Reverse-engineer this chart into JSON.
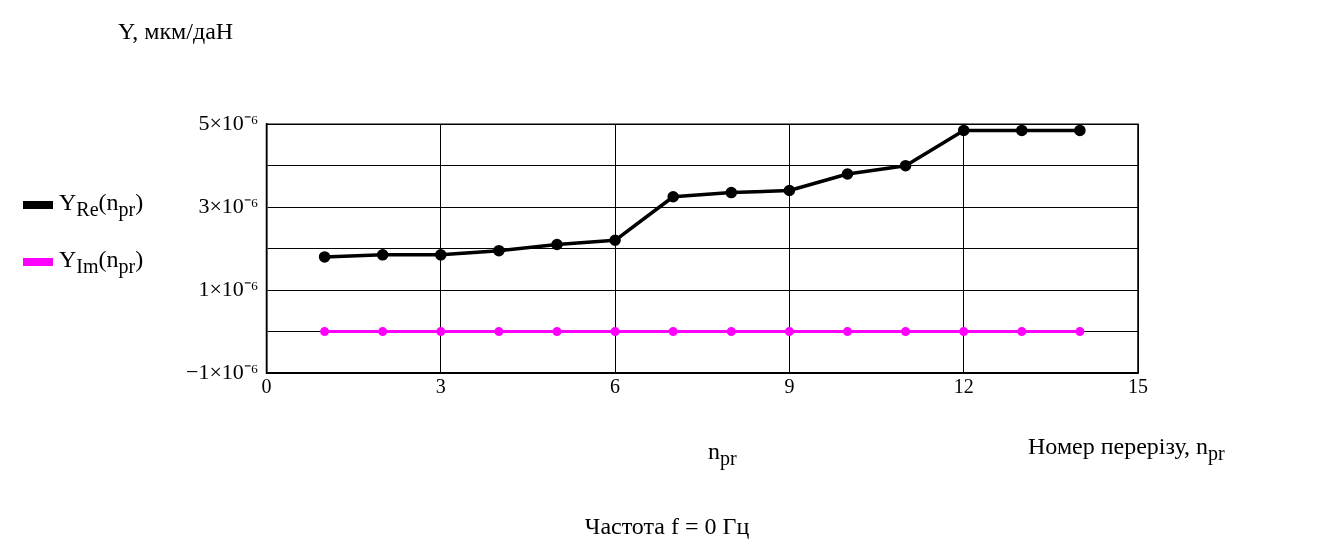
{
  "chart_data": {
    "type": "line",
    "ylabel": "Y, мкм/даН",
    "xlabel": "Номер перерізу, n$_{pr}$",
    "annotations": [
      "n$_{pr}$",
      "Частота f = 0 Гц"
    ],
    "x": [
      1,
      2,
      3,
      4,
      5,
      6,
      7,
      8,
      9,
      10,
      11,
      12,
      13,
      14
    ],
    "series": [
      {
        "name": "Y$_{Re}$(n$_{pr}$)",
        "color": "#000000",
        "values": [
          1.8e-06,
          1.85e-06,
          1.85e-06,
          1.95e-06,
          2.1e-06,
          2.2e-06,
          3.25e-06,
          3.35e-06,
          3.4e-06,
          3.8e-06,
          4e-06,
          4.85e-06,
          4.85e-06,
          4.85e-06
        ]
      },
      {
        "name": "Y$_{Im}$(n$_{pr}$)",
        "color": "#ff00ff",
        "values": [
          0,
          0,
          0,
          0,
          0,
          0,
          0,
          0,
          0,
          0,
          0,
          0,
          0,
          0
        ]
      }
    ],
    "xlim": [
      0,
      15
    ],
    "xticks": [
      0,
      3,
      6,
      9,
      12,
      15
    ],
    "ylim": [
      -1e-06,
      5e-06
    ],
    "yticks": [
      {
        "value": -1e-06,
        "label": "−1×10⁻⁶"
      },
      {
        "value": 0,
        "label": null
      },
      {
        "value": 1e-06,
        "label": "1×10⁻⁶"
      },
      {
        "value": 2e-06,
        "label": null
      },
      {
        "value": 3e-06,
        "label": "3×10⁻⁶"
      },
      {
        "value": 4e-06,
        "label": null
      },
      {
        "value": 5e-06,
        "label": "5×10⁻⁶"
      }
    ],
    "grid": true,
    "legend": "left",
    "marker": "circle",
    "line_style": "solid"
  }
}
